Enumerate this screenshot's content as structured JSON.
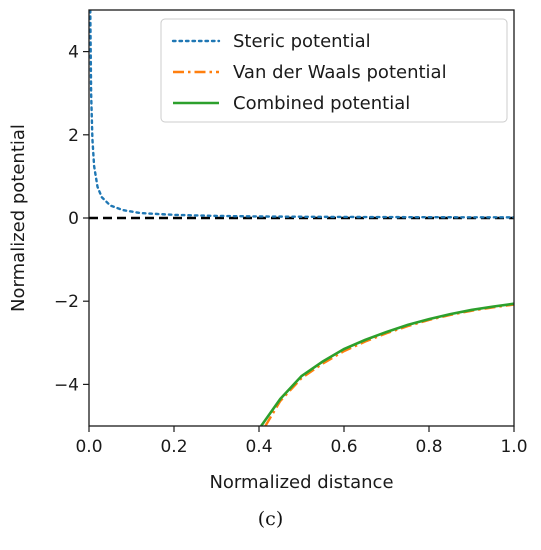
{
  "caption": "(c)",
  "chart_data": {
    "type": "line",
    "title": "",
    "xlabel": "Normalized distance",
    "ylabel": "Normalized potential",
    "xlim": [
      0.0,
      1.0
    ],
    "ylim": [
      -5.0,
      5.0
    ],
    "xticks": [
      0.0,
      0.2,
      0.4,
      0.6,
      0.8,
      1.0
    ],
    "xtick_labels": [
      "0.0",
      "0.2",
      "0.4",
      "0.6",
      "0.8",
      "1.0"
    ],
    "yticks": [
      -4,
      -2,
      0,
      2,
      4
    ],
    "ytick_labels": [
      "−4",
      "−2",
      "0",
      "2",
      "4"
    ],
    "grid": false,
    "legend_position": "top-right",
    "reference_line": {
      "y": 0,
      "style": "dashed",
      "color": "#000000"
    },
    "series": [
      {
        "name": "Steric potential",
        "color": "#1f77b4",
        "style": "dotted",
        "x": [
          0.003,
          0.005,
          0.008,
          0.012,
          0.02,
          0.03,
          0.05,
          0.08,
          0.12,
          0.2,
          0.3,
          0.4,
          0.5,
          0.6,
          0.8,
          1.0
        ],
        "y": [
          5.0,
          3.0,
          1.9,
          1.25,
          0.75,
          0.5,
          0.3,
          0.19,
          0.12,
          0.075,
          0.05,
          0.037,
          0.03,
          0.025,
          0.019,
          0.015
        ]
      },
      {
        "name": "Van der Waals potential",
        "color": "#ff7f0e",
        "style": "dashdot",
        "x": [
          0.415,
          0.45,
          0.5,
          0.55,
          0.6,
          0.65,
          0.7,
          0.75,
          0.8,
          0.85,
          0.9,
          0.95,
          1.0
        ],
        "y": [
          -5.0,
          -4.4,
          -3.85,
          -3.5,
          -3.2,
          -2.97,
          -2.77,
          -2.6,
          -2.45,
          -2.33,
          -2.23,
          -2.15,
          -2.08
        ]
      },
      {
        "name": "Combined potential",
        "color": "#2ca02c",
        "style": "solid",
        "x": [
          0.405,
          0.45,
          0.5,
          0.55,
          0.6,
          0.65,
          0.7,
          0.75,
          0.8,
          0.85,
          0.9,
          0.95,
          1.0
        ],
        "y": [
          -5.0,
          -4.35,
          -3.8,
          -3.45,
          -3.15,
          -2.93,
          -2.74,
          -2.57,
          -2.43,
          -2.31,
          -2.21,
          -2.13,
          -2.06
        ]
      }
    ]
  }
}
